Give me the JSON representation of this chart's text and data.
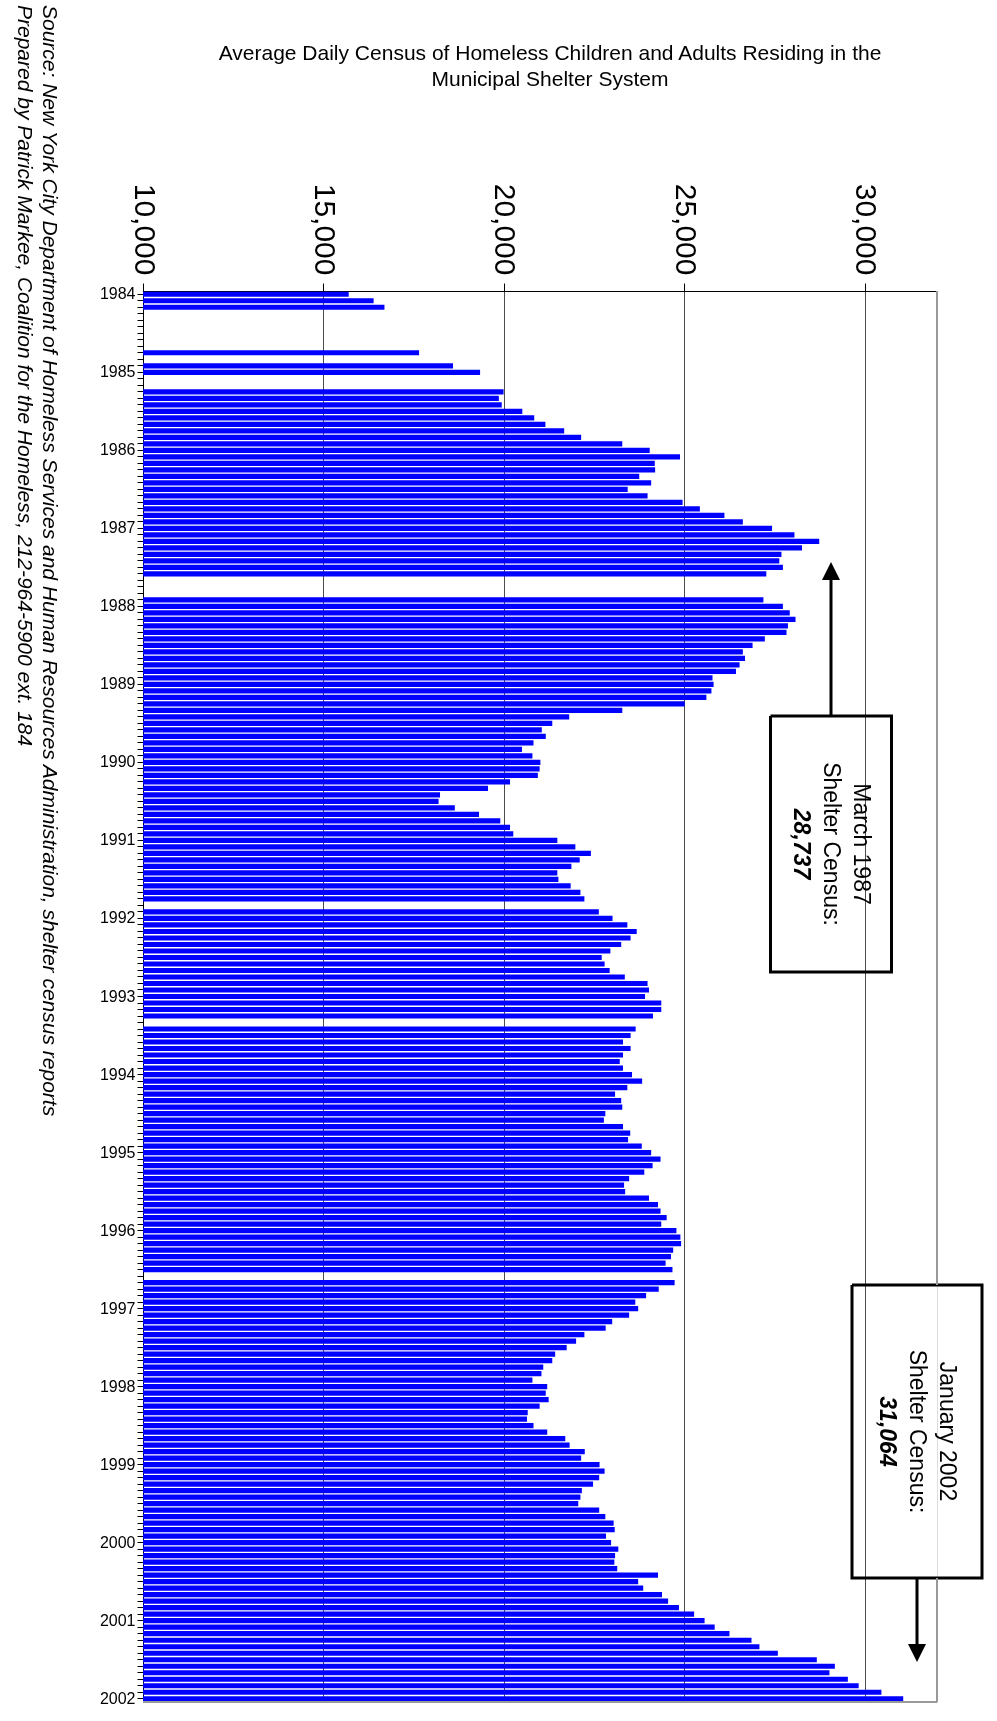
{
  "chart_data": {
    "type": "bar",
    "orientation": "horizontal",
    "title": "Average Daily Census of Homeless Children and Adults Residing in the Municipal Shelter System",
    "categories": [
      "1984",
      null,
      null,
      null,
      null,
      null,
      null,
      null,
      null,
      null,
      null,
      null,
      "1985",
      null,
      null,
      null,
      null,
      null,
      null,
      null,
      null,
      null,
      null,
      null,
      "1986",
      null,
      null,
      null,
      null,
      null,
      null,
      null,
      null,
      null,
      null,
      null,
      "1987",
      null,
      null,
      null,
      null,
      null,
      null,
      null,
      null,
      null,
      null,
      null,
      "1988",
      null,
      null,
      null,
      null,
      null,
      null,
      null,
      null,
      null,
      null,
      null,
      "1989",
      null,
      null,
      null,
      null,
      null,
      null,
      null,
      null,
      null,
      null,
      null,
      "1990",
      null,
      null,
      null,
      null,
      null,
      null,
      null,
      null,
      null,
      null,
      null,
      "1991",
      null,
      null,
      null,
      null,
      null,
      null,
      null,
      null,
      null,
      null,
      null,
      "1992",
      null,
      null,
      null,
      null,
      null,
      null,
      null,
      null,
      null,
      null,
      null,
      "1993",
      null,
      null,
      null,
      null,
      null,
      null,
      null,
      null,
      null,
      null,
      null,
      "1994",
      null,
      null,
      null,
      null,
      null,
      null,
      null,
      null,
      null,
      null,
      null,
      "1995",
      null,
      null,
      null,
      null,
      null,
      null,
      null,
      null,
      null,
      null,
      null,
      "1996",
      null,
      null,
      null,
      null,
      null,
      null,
      null,
      null,
      null,
      null,
      null,
      "1997",
      null,
      null,
      null,
      null,
      null,
      null,
      null,
      null,
      null,
      null,
      null,
      "1998",
      null,
      null,
      null,
      null,
      null,
      null,
      null,
      null,
      null,
      null,
      null,
      "1999",
      null,
      null,
      null,
      null,
      null,
      null,
      null,
      null,
      null,
      null,
      null,
      "2000",
      null,
      null,
      null,
      null,
      null,
      null,
      null,
      null,
      null,
      null,
      null,
      "2001",
      null,
      null,
      null,
      null,
      null,
      null,
      null,
      null,
      null,
      null,
      null,
      "2002"
    ],
    "values": [
      15700,
      16390,
      16690,
      null,
      null,
      null,
      null,
      null,
      null,
      17650,
      null,
      18590,
      19340,
      null,
      null,
      19990,
      19860,
      19940,
      20510,
      20840,
      21150,
      21670,
      22140,
      23280,
      24040,
      24880,
      24180,
      24190,
      23750,
      24080,
      23430,
      23980,
      24950,
      25430,
      26110,
      26620,
      27430,
      28050,
      28737,
      28260,
      27690,
      27630,
      27730,
      27270,
      null,
      null,
      null,
      27190,
      27730,
      27920,
      28080,
      27870,
      27830,
      27230,
      26890,
      26620,
      26680,
      26530,
      26430,
      25780,
      25810,
      25750,
      25610,
      25010,
      23280,
      21810,
      21340,
      21050,
      21160,
      20820,
      20500,
      20790,
      21010,
      20990,
      20940,
      20170,
      19560,
      18230,
      18190,
      18640,
      19310,
      19900,
      20170,
      20260,
      21480,
      21980,
      22410,
      22100,
      21870,
      21480,
      21510,
      21850,
      22120,
      22230,
      null,
      22630,
      23010,
      23420,
      23680,
      23510,
      23250,
      22950,
      22710,
      22790,
      22930,
      23350,
      23980,
      24020,
      23910,
      24360,
      24360,
      24130,
      null,
      23650,
      23510,
      23300,
      23510,
      23300,
      23210,
      23300,
      23550,
      23830,
      23420,
      23080,
      23250,
      23280,
      22810,
      22770,
      23300,
      23500,
      23440,
      23820,
      24080,
      24340,
      24120,
      23890,
      23470,
      23330,
      23360,
      24020,
      24270,
      24340,
      24510,
      24360,
      24780,
      24890,
      24910,
      24690,
      24630,
      24480,
      24670,
      null,
      24730,
      24290,
      23940,
      23640,
      23720,
      23470,
      23000,
      22820,
      22230,
      22000,
      21740,
      21420,
      21340,
      21090,
      21040,
      20790,
      21200,
      21160,
      21240,
      20990,
      20660,
      20640,
      20820,
      21200,
      21700,
      21820,
      22240,
      22140,
      22650,
      22790,
      22640,
      22470,
      22160,
      22120,
      22060,
      22640,
      22810,
      23040,
      23070,
      22830,
      22970,
      23170,
      23080,
      23060,
      23140,
      24270,
      23720,
      23860,
      24380,
      24550,
      24850,
      25270,
      25560,
      25840,
      26250,
      26860,
      27080,
      27590,
      28670,
      29170,
      29020,
      29530,
      29830,
      30460,
      31064
    ],
    "color": "#0000ff",
    "xlim": [
      10000,
      32000
    ],
    "xticks": [
      {
        "value": 10000,
        "label": "10,000"
      },
      {
        "value": 15000,
        "label": "15,000"
      },
      {
        "value": 20000,
        "label": "20,000"
      },
      {
        "value": 25000,
        "label": "25,000"
      },
      {
        "value": 30000,
        "label": "30,000"
      }
    ],
    "grid": "x",
    "annotations": [
      "March 1987\nShelter Census:\n28,737",
      "January 2002\nShelter Census:\n31,064",
      "Source:  New York City Department of Homeless Services and Human Resources Administration, shelter census reports",
      "Prepared by Patrick Markee, Coalition for the Homeless, 212-964-5900 ext. 184"
    ]
  }
}
